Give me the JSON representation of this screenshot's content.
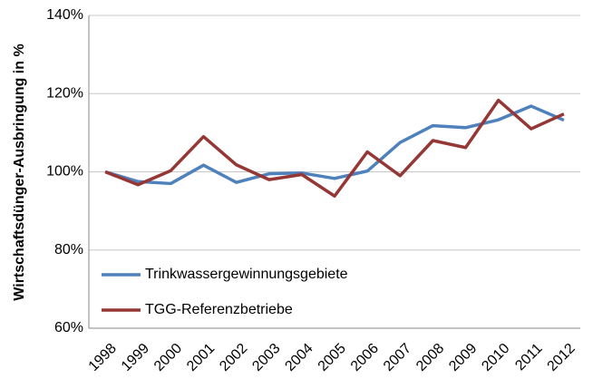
{
  "chart_data": {
    "type": "line",
    "y_label": "Wirtschaftsdünger-Ausbringung in %",
    "categories": [
      "1998",
      "1999",
      "2000",
      "2001",
      "2002",
      "2003",
      "2004",
      "2005",
      "2006",
      "2007",
      "2008",
      "2009",
      "2010",
      "2011",
      "2012"
    ],
    "series": [
      {
        "name": "Trinkwassergewinnungsgebiete",
        "color": "#4f81bd",
        "values": [
          100,
          97.5,
          97,
          101.7,
          97.3,
          99.5,
          99.7,
          98.3,
          100.2,
          107.5,
          111.8,
          111.3,
          113.3,
          116.8,
          113.2
        ]
      },
      {
        "name": "TGG-Referenzbetriebe",
        "color": "#953735",
        "values": [
          100,
          96.7,
          100.3,
          109,
          101.8,
          98,
          99.3,
          93.8,
          105.1,
          99,
          108,
          106.2,
          118.3,
          111,
          114.8
        ]
      }
    ],
    "ylim": [
      60,
      140
    ],
    "yticks": [
      {
        "value": 60,
        "label": "60%"
      },
      {
        "value": 80,
        "label": "80%"
      },
      {
        "value": 100,
        "label": "100%"
      },
      {
        "value": 120,
        "label": "120%"
      },
      {
        "value": 140,
        "label": "140%"
      }
    ],
    "grid": true
  }
}
